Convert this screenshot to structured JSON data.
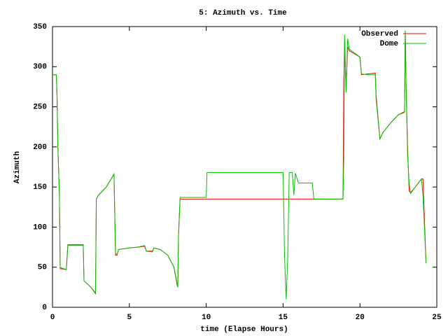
{
  "chart_data": {
    "type": "line",
    "title": "5: Azimuth vs. Time",
    "x_label": "time (Elapse Hours)",
    "y_label": "Azimuth",
    "x": [
      0.0,
      0.25,
      0.3,
      0.35,
      0.4,
      0.45,
      0.5,
      0.6,
      0.9,
      1.0,
      2.0,
      2.05,
      2.5,
      2.8,
      2.85,
      3.0,
      3.5,
      4.0,
      4.1,
      4.2,
      4.3,
      5.0,
      5.5,
      6.0,
      6.1,
      6.5,
      6.6,
      7.0,
      7.5,
      7.9,
      8.1,
      8.15,
      8.2,
      8.3,
      10.0,
      10.05,
      15.0,
      15.1,
      15.2,
      15.3,
      15.4,
      15.6,
      15.7,
      15.8,
      16.0,
      16.9,
      17.0,
      18.9,
      18.95,
      19.0,
      19.1,
      19.2,
      19.3,
      20.0,
      20.1,
      20.5,
      21.0,
      21.05,
      21.3,
      21.5,
      22.0,
      22.5,
      22.9,
      22.95,
      23.0,
      23.1,
      23.2,
      23.3,
      23.6,
      24.0,
      24.1,
      24.3
    ],
    "series": [
      {
        "name": "Observed",
        "color": "#ff0000",
        "values": [
          290,
          290,
          260,
          200,
          170,
          140,
          48,
          48,
          47,
          78,
          78,
          33,
          25,
          17,
          135,
          140,
          150,
          166,
          65,
          65,
          72,
          74,
          75,
          76,
          70,
          70,
          74,
          72,
          65,
          50,
          30,
          25,
          90,
          135,
          135,
          135,
          135,
          135,
          135,
          135,
          135,
          135,
          135,
          135,
          135,
          135,
          135,
          135,
          280,
          330,
          270,
          325,
          320,
          312,
          290,
          291,
          292,
          265,
          210,
          218,
          230,
          240,
          244,
          345,
          280,
          200,
          145,
          143,
          150,
          160,
          160,
          55
        ]
      },
      {
        "name": "Dome",
        "color": "#00c000",
        "values": [
          290,
          290,
          260,
          200,
          170,
          140,
          50,
          49,
          47,
          77,
          77,
          33,
          25,
          18,
          135,
          140,
          150,
          166,
          67,
          66,
          72,
          74,
          75,
          77,
          70,
          69,
          74,
          72,
          65,
          50,
          28,
          25,
          90,
          137,
          137,
          168,
          168,
          60,
          10,
          60,
          168,
          168,
          140,
          167,
          155,
          155,
          135,
          135,
          185,
          340,
          268,
          335,
          322,
          312,
          291,
          290,
          290,
          260,
          210,
          218,
          230,
          240,
          243,
          345,
          280,
          190,
          155,
          142,
          150,
          160,
          140,
          55
        ]
      }
    ],
    "xlim": [
      0,
      25
    ],
    "ylim": [
      0,
      350
    ],
    "xticks": [
      0,
      5,
      10,
      15,
      20,
      25
    ],
    "yticks": [
      0,
      50,
      100,
      150,
      200,
      250,
      300,
      350
    ],
    "legend": "upper right"
  }
}
